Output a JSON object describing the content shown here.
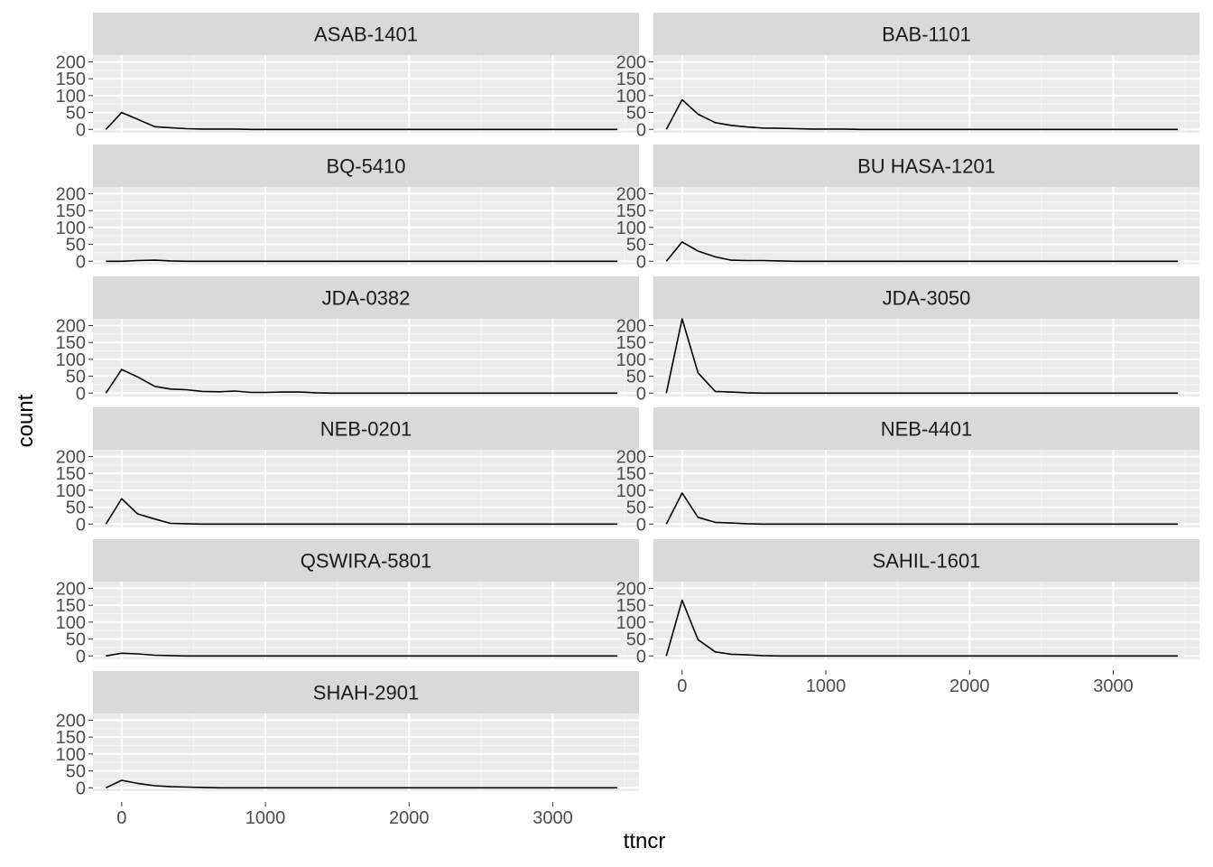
{
  "chart_data": {
    "type": "line",
    "stat": "frequency polygon",
    "xlabel": "ttncr",
    "ylabel": "count",
    "xlim": [
      -200,
      3600
    ],
    "ylim": [
      -10,
      220
    ],
    "xticks": [
      0,
      1000,
      2000,
      3000
    ],
    "yticks": [
      0,
      50,
      100,
      150,
      200
    ],
    "colors": {
      "panel_background": "#ebebeb",
      "strip_background": "#d9d9d9",
      "grid_major": "#ffffff",
      "line": "#000000",
      "tick_text": "#4d4d4d"
    },
    "x": [
      -110,
      0,
      110,
      230,
      340,
      450,
      560,
      680,
      790,
      900,
      1010,
      1120,
      1240,
      1350,
      1460,
      1570,
      1680,
      1800,
      1910,
      2020,
      2130,
      2240,
      2360,
      2470,
      2580,
      2690,
      2800,
      2920,
      3030,
      3140,
      3250,
      3360,
      3450
    ],
    "panels": [
      {
        "name": "ASAB-1401",
        "values": [
          0,
          50,
          30,
          8,
          5,
          2,
          1,
          1,
          1,
          0,
          0,
          0,
          0,
          0,
          0,
          0,
          0,
          0,
          0,
          0,
          0,
          0,
          0,
          0,
          0,
          0,
          0,
          0,
          0,
          0,
          0,
          0,
          0
        ]
      },
      {
        "name": "BAB-1101",
        "values": [
          0,
          88,
          45,
          20,
          12,
          7,
          4,
          3,
          2,
          1,
          1,
          1,
          0,
          0,
          0,
          0,
          0,
          0,
          0,
          0,
          0,
          0,
          0,
          0,
          0,
          0,
          0,
          0,
          0,
          0,
          0,
          0,
          0
        ]
      },
      {
        "name": "BQ-5410",
        "values": [
          0,
          0,
          2,
          3,
          1,
          0,
          0,
          0,
          0,
          0,
          0,
          0,
          0,
          0,
          0,
          0,
          0,
          0,
          0,
          0,
          0,
          0,
          0,
          0,
          0,
          0,
          0,
          0,
          0,
          0,
          0,
          0,
          0
        ]
      },
      {
        "name": "BU HASA-1201",
        "values": [
          0,
          57,
          30,
          13,
          3,
          2,
          2,
          1,
          0,
          0,
          0,
          0,
          0,
          0,
          0,
          0,
          0,
          0,
          0,
          0,
          0,
          0,
          0,
          0,
          0,
          0,
          0,
          0,
          0,
          0,
          0,
          0,
          0
        ]
      },
      {
        "name": "JDA-0382",
        "values": [
          0,
          70,
          48,
          20,
          12,
          10,
          5,
          4,
          6,
          2,
          2,
          3,
          3,
          1,
          0,
          0,
          0,
          0,
          0,
          0,
          0,
          0,
          0,
          0,
          0,
          0,
          0,
          0,
          0,
          0,
          0,
          0,
          0
        ]
      },
      {
        "name": "JDA-3050",
        "values": [
          0,
          220,
          60,
          5,
          3,
          1,
          0,
          0,
          0,
          0,
          0,
          0,
          0,
          0,
          0,
          0,
          0,
          0,
          0,
          0,
          0,
          0,
          0,
          0,
          0,
          0,
          0,
          0,
          0,
          0,
          0,
          0,
          0
        ]
      },
      {
        "name": "NEB-0201",
        "values": [
          0,
          75,
          30,
          15,
          2,
          1,
          0,
          0,
          0,
          0,
          0,
          0,
          0,
          0,
          0,
          0,
          0,
          0,
          0,
          0,
          0,
          0,
          0,
          0,
          0,
          0,
          0,
          0,
          0,
          0,
          0,
          0,
          0
        ]
      },
      {
        "name": "NEB-4401",
        "values": [
          0,
          92,
          20,
          5,
          3,
          1,
          0,
          0,
          0,
          0,
          0,
          0,
          0,
          0,
          0,
          0,
          0,
          0,
          0,
          0,
          0,
          0,
          0,
          0,
          0,
          0,
          0,
          0,
          0,
          0,
          0,
          0,
          0
        ]
      },
      {
        "name": "QSWIRA-5801",
        "values": [
          0,
          8,
          6,
          2,
          1,
          0,
          0,
          0,
          0,
          0,
          0,
          0,
          0,
          0,
          0,
          0,
          0,
          0,
          0,
          0,
          0,
          0,
          0,
          0,
          0,
          0,
          0,
          0,
          0,
          0,
          0,
          0,
          0
        ]
      },
      {
        "name": "SAHIL-1601",
        "values": [
          0,
          165,
          48,
          12,
          5,
          3,
          1,
          0,
          0,
          0,
          0,
          0,
          0,
          0,
          0,
          0,
          0,
          0,
          0,
          0,
          0,
          0,
          0,
          0,
          0,
          0,
          0,
          0,
          0,
          0,
          0,
          0,
          0
        ]
      },
      {
        "name": "SHAH-2901",
        "values": [
          0,
          22,
          13,
          6,
          3,
          2,
          1,
          0,
          0,
          0,
          0,
          0,
          0,
          0,
          0,
          0,
          0,
          0,
          0,
          0,
          0,
          0,
          0,
          0,
          0,
          0,
          0,
          0,
          0,
          0,
          0,
          0,
          0
        ]
      }
    ]
  }
}
